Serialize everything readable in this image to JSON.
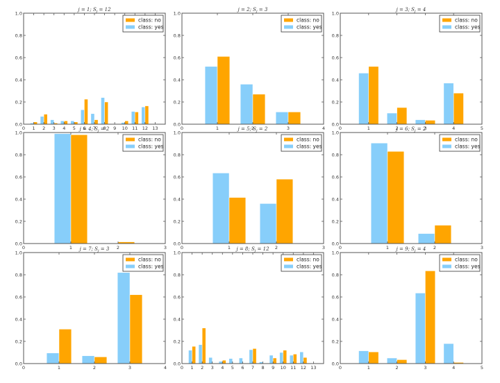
{
  "colors": {
    "no": "#FFA500",
    "yes": "#87CEFA"
  },
  "chart_data": [
    {
      "type": "bar",
      "title": "j = 1; S_j = 12",
      "xlabel": "",
      "ylabel": "",
      "xlim": [
        0,
        14
      ],
      "ylim": [
        0,
        1.0
      ],
      "xticks": [
        "0",
        "1",
        "2",
        "3",
        "4",
        "5",
        "6",
        "7",
        "8",
        "9",
        "10",
        "11",
        "12",
        "13"
      ],
      "yticks": [
        "0.0",
        "0.2",
        "0.4",
        "0.6",
        "0.8",
        "1.0"
      ],
      "categories": [
        1,
        2,
        3,
        4,
        5,
        6,
        7,
        8,
        9,
        10,
        11,
        12
      ],
      "series": [
        {
          "name": "class: yes",
          "values": [
            0.01,
            0.07,
            0.04,
            0.03,
            0.03,
            0.13,
            0.095,
            0.24,
            0.003,
            0.015,
            0.115,
            0.155
          ]
        },
        {
          "name": "class: no",
          "values": [
            0.02,
            0.09,
            0.01,
            0.03,
            0.02,
            0.225,
            0.04,
            0.2,
            0.003,
            0.03,
            0.11,
            0.165
          ]
        }
      ],
      "legend": [
        "class: no",
        "class: yes"
      ],
      "legend_position": "top-right"
    },
    {
      "type": "bar",
      "title": "j = 2; S_j = 3",
      "xlim": [
        0,
        4
      ],
      "ylim": [
        0,
        1.0
      ],
      "xticks": [
        "0",
        "1",
        "2",
        "3",
        "4"
      ],
      "yticks": [
        "0.0",
        "0.2",
        "0.4",
        "0.6",
        "0.8",
        "1.0"
      ],
      "categories": [
        1,
        2,
        3
      ],
      "series": [
        {
          "name": "class: yes",
          "values": [
            0.52,
            0.36,
            0.11
          ]
        },
        {
          "name": "class: no",
          "values": [
            0.61,
            0.27,
            0.11
          ]
        }
      ],
      "legend": [
        "class: no",
        "class: yes"
      ],
      "legend_position": "top-right"
    },
    {
      "type": "bar",
      "title": "j = 3; S_j = 4",
      "xlim": [
        0,
        5
      ],
      "ylim": [
        0,
        1.0
      ],
      "xticks": [
        "0",
        "1",
        "2",
        "3",
        "4",
        "5"
      ],
      "yticks": [
        "0.0",
        "0.2",
        "0.4",
        "0.6",
        "0.8",
        "1.0"
      ],
      "categories": [
        1,
        2,
        3,
        4
      ],
      "series": [
        {
          "name": "class: yes",
          "values": [
            0.46,
            0.1,
            0.04,
            0.37
          ]
        },
        {
          "name": "class: no",
          "values": [
            0.52,
            0.15,
            0.035,
            0.28
          ]
        }
      ],
      "legend": [
        "class: no",
        "class: yes"
      ],
      "legend_position": "top-right"
    },
    {
      "type": "bar",
      "title": "j = 4; S_j = 2",
      "xlim": [
        0,
        3
      ],
      "ylim": [
        0,
        1.0
      ],
      "xticks": [
        "0",
        "1",
        "2",
        "3"
      ],
      "yticks": [
        "0.0",
        "0.2",
        "0.4",
        "0.6",
        "0.8",
        "1.0"
      ],
      "categories": [
        1,
        2
      ],
      "series": [
        {
          "name": "class: yes",
          "values": [
            0.99,
            0.005
          ]
        },
        {
          "name": "class: no",
          "values": [
            0.98,
            0.015
          ]
        }
      ],
      "legend": [
        "class: no",
        "class: yes"
      ],
      "legend_position": "top-right"
    },
    {
      "type": "bar",
      "title": "j = 5; S_j = 2",
      "xlim": [
        0,
        3
      ],
      "ylim": [
        0,
        1.0
      ],
      "xticks": [
        "0",
        "1",
        "2",
        "3"
      ],
      "yticks": [
        "0.0",
        "0.2",
        "0.4",
        "0.6",
        "0.8",
        "1.0"
      ],
      "categories": [
        1,
        2
      ],
      "series": [
        {
          "name": "class: yes",
          "values": [
            0.635,
            0.36
          ]
        },
        {
          "name": "class: no",
          "values": [
            0.415,
            0.58
          ]
        }
      ],
      "legend": [
        "class: no",
        "class: yes"
      ],
      "legend_position": "top-right"
    },
    {
      "type": "bar",
      "title": "j = 6; S_j = 2",
      "xlim": [
        0,
        3
      ],
      "ylim": [
        0,
        1.0
      ],
      "xticks": [
        "0",
        "1",
        "2",
        "3"
      ],
      "yticks": [
        "0.0",
        "0.2",
        "0.4",
        "0.6",
        "0.8",
        "1.0"
      ],
      "categories": [
        1,
        2
      ],
      "series": [
        {
          "name": "class: yes",
          "values": [
            0.905,
            0.09
          ]
        },
        {
          "name": "class: no",
          "values": [
            0.83,
            0.165
          ]
        }
      ],
      "legend": [
        "class: no",
        "class: yes"
      ],
      "legend_position": "top-right"
    },
    {
      "type": "bar",
      "title": "j = 7; S_j = 3",
      "xlim": [
        0,
        4
      ],
      "ylim": [
        0,
        1.0
      ],
      "xticks": [
        "0",
        "1",
        "2",
        "3",
        "4"
      ],
      "yticks": [
        "0.0",
        "0.2",
        "0.4",
        "0.6",
        "0.8",
        "1.0"
      ],
      "categories": [
        1,
        2,
        3
      ],
      "series": [
        {
          "name": "class: yes",
          "values": [
            0.095,
            0.07,
            0.82
          ]
        },
        {
          "name": "class: no",
          "values": [
            0.31,
            0.06,
            0.62
          ]
        }
      ],
      "legend": [
        "class: no",
        "class: yes"
      ],
      "legend_position": "top-right"
    },
    {
      "type": "bar",
      "title": "j = 8; S_j = 12",
      "xlim": [
        0,
        14
      ],
      "ylim": [
        0,
        1.0
      ],
      "xticks": [
        "0",
        "1",
        "2",
        "3",
        "4",
        "5",
        "6",
        "7",
        "8",
        "9",
        "10",
        "11",
        "12",
        "13"
      ],
      "yticks": [
        "0.0",
        "0.2",
        "0.4",
        "0.6",
        "0.8",
        "1.0"
      ],
      "categories": [
        1,
        2,
        3,
        4,
        5,
        6,
        7,
        8,
        9,
        10,
        11,
        12
      ],
      "series": [
        {
          "name": "class: yes",
          "values": [
            0.12,
            0.17,
            0.055,
            0.02,
            0.045,
            0.05,
            0.125,
            0.015,
            0.075,
            0.1,
            0.075,
            0.105
          ]
        },
        {
          "name": "class: no",
          "values": [
            0.155,
            0.32,
            0.005,
            0.03,
            0.005,
            0.005,
            0.135,
            0.003,
            0.05,
            0.12,
            0.085,
            0.055
          ]
        }
      ],
      "legend": [
        "class: no",
        "class: yes"
      ],
      "legend_position": "top-right"
    },
    {
      "type": "bar",
      "title": "j = 9; S_j = 4",
      "xlim": [
        0,
        5
      ],
      "ylim": [
        0,
        1.0
      ],
      "xticks": [
        "0",
        "1",
        "2",
        "3",
        "4",
        "5"
      ],
      "yticks": [
        "0.0",
        "0.2",
        "0.4",
        "0.6",
        "0.8",
        "1.0"
      ],
      "categories": [
        1,
        2,
        3,
        4
      ],
      "series": [
        {
          "name": "class: yes",
          "values": [
            0.115,
            0.05,
            0.635,
            0.18
          ]
        },
        {
          "name": "class: no",
          "values": [
            0.105,
            0.035,
            0.835,
            0.01
          ]
        }
      ],
      "legend": [
        "class: no",
        "class: yes"
      ],
      "legend_position": "top-right"
    }
  ]
}
